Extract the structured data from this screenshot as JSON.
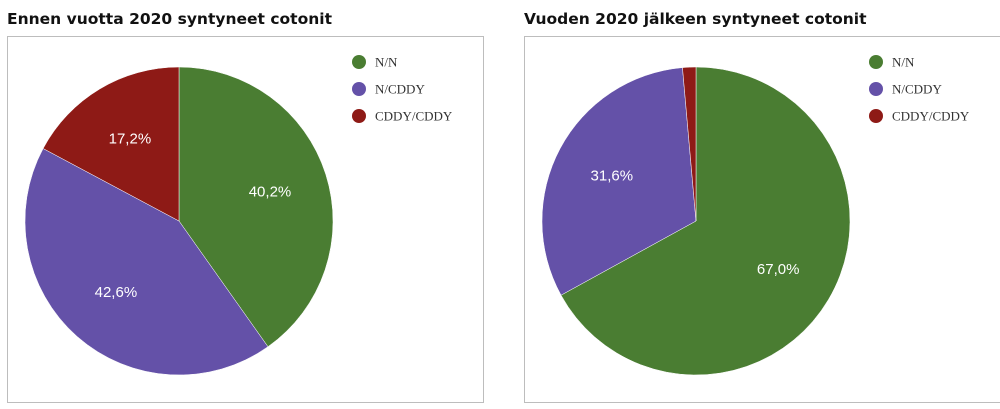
{
  "chart_data": [
    {
      "type": "pie",
      "title": "Ennen vuotta 2020 syntyneet cotonit",
      "categories": [
        "N/N",
        "N/CDDY",
        "CDDY/CDDY"
      ],
      "values": [
        40.2,
        42.6,
        17.2
      ],
      "value_labels": [
        "40,2%",
        "42,6%",
        "17,2%"
      ],
      "colors": [
        "#4a7d32",
        "#6451a8",
        "#8e1a16"
      ],
      "legend": "top-right"
    },
    {
      "type": "pie",
      "title": "Vuoden 2020 jälkeen syntyneet cotonit",
      "categories": [
        "N/N",
        "N/CDDY",
        "CDDY/CDDY"
      ],
      "values": [
        67.0,
        31.6,
        1.4
      ],
      "value_labels": [
        "67,0%",
        "31,6%",
        ""
      ],
      "colors": [
        "#4a7d32",
        "#6451a8",
        "#8e1a16"
      ],
      "legend": "top-right"
    }
  ]
}
